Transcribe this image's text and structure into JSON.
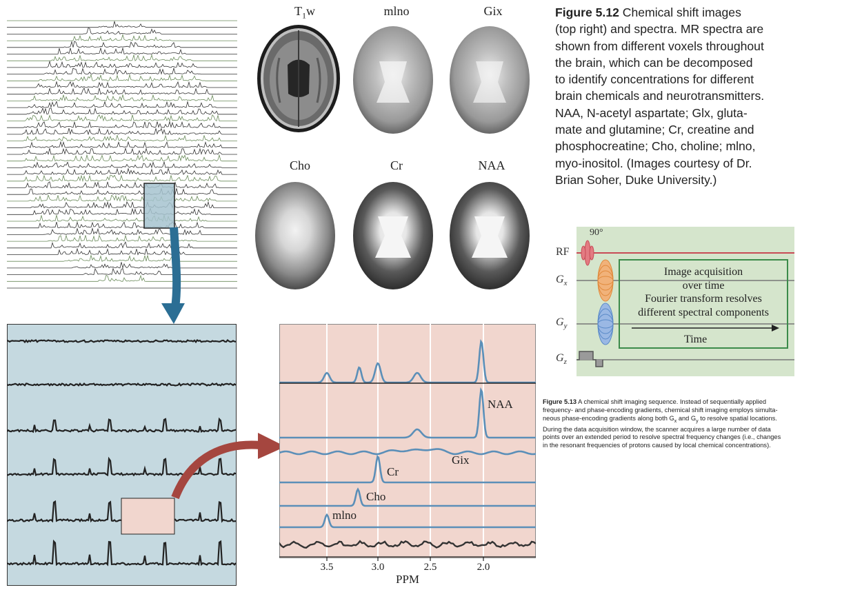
{
  "figure512": {
    "number": "Figure 5.12",
    "caption": "Chemical shift images (top right) and spectra. MR spectra are shown from different voxels throughout the brain, which can be decomposed to identify concentrations for different brain chemicals and neurotransmitters. NAA, N-acetyl aspartate; Glx, glutamate and glutamine; Cr, creatine and phosphocreatine; Cho, choline; mlno, myo-inositol. (Images courtesy of Dr. Brian Soher, Duke University.)",
    "caption_lines": [
      "Chemical shift images",
      "(top right) and spectra. MR spectra are",
      "shown from different voxels throughout",
      "the brain, which can be decomposed",
      "to identify concentrations for different",
      "brain chemicals and neurotransmitters.",
      "NAA, N-acetyl aspartate; Glx, gluta-",
      "mate and glutamine; Cr, creatine and",
      "phosphocreatine; Cho, choline; mlno,",
      "myo-inositol. (Images courtesy of Dr.",
      "Brian Soher, Duke University.)"
    ],
    "image_labels": [
      "T1w",
      "mlno",
      "Gix",
      "Cho",
      "Cr",
      "NAA"
    ],
    "t1_main": "T",
    "t1_sub": "1",
    "t1_tail": "w"
  },
  "spectra": {
    "axis_label": "PPM",
    "ticks": [
      "3.5",
      "3.0",
      "2.5",
      "2.0"
    ],
    "peak_labels": [
      "NAA",
      "Gix",
      "Cr",
      "Cho",
      "mlno"
    ]
  },
  "figure513": {
    "number": "Figure 5.13",
    "caption_lines": [
      "A chemical shift imaging sequence. Instead of sequentially applied",
      "frequency- and phase-encoding gradients, chemical shift imaging employs simulta-",
      "neous phase-encoding gradients along both G",
      "and G",
      "to resolve spatial locations.",
      "During the data acquisition window, the scanner acquires a large number of data",
      "points over an extended period to resolve spectral frequency changes (i.e., changes",
      "in the resonant frequencies of protons caused by local chemical concentrations)."
    ],
    "sub_x": "x",
    "sub_y": "y"
  },
  "sequence": {
    "angle": "90°",
    "rf": "RF",
    "gx": "G",
    "gy": "G",
    "gz": "G",
    "sub_x": "x",
    "sub_y": "y",
    "sub_z": "z",
    "box_line1": "Image acquisition",
    "box_line2": "over time",
    "box_line3": "Fourier transform resolves",
    "box_line4": "different spectral components",
    "time_label": "Time"
  },
  "colors": {
    "spectrum_blue": "#5b8fb8",
    "zoom_bg": "#c5d9e0",
    "spectra_bg": "#f1d6ce",
    "seq_bg": "#d5e5cc",
    "arrow_blue": "#2b6e94",
    "arrow_red": "#a5463f",
    "rf_red": "#c84a55",
    "gx_orange": "#e08a3c",
    "gy_blue": "#5a8ac8"
  }
}
